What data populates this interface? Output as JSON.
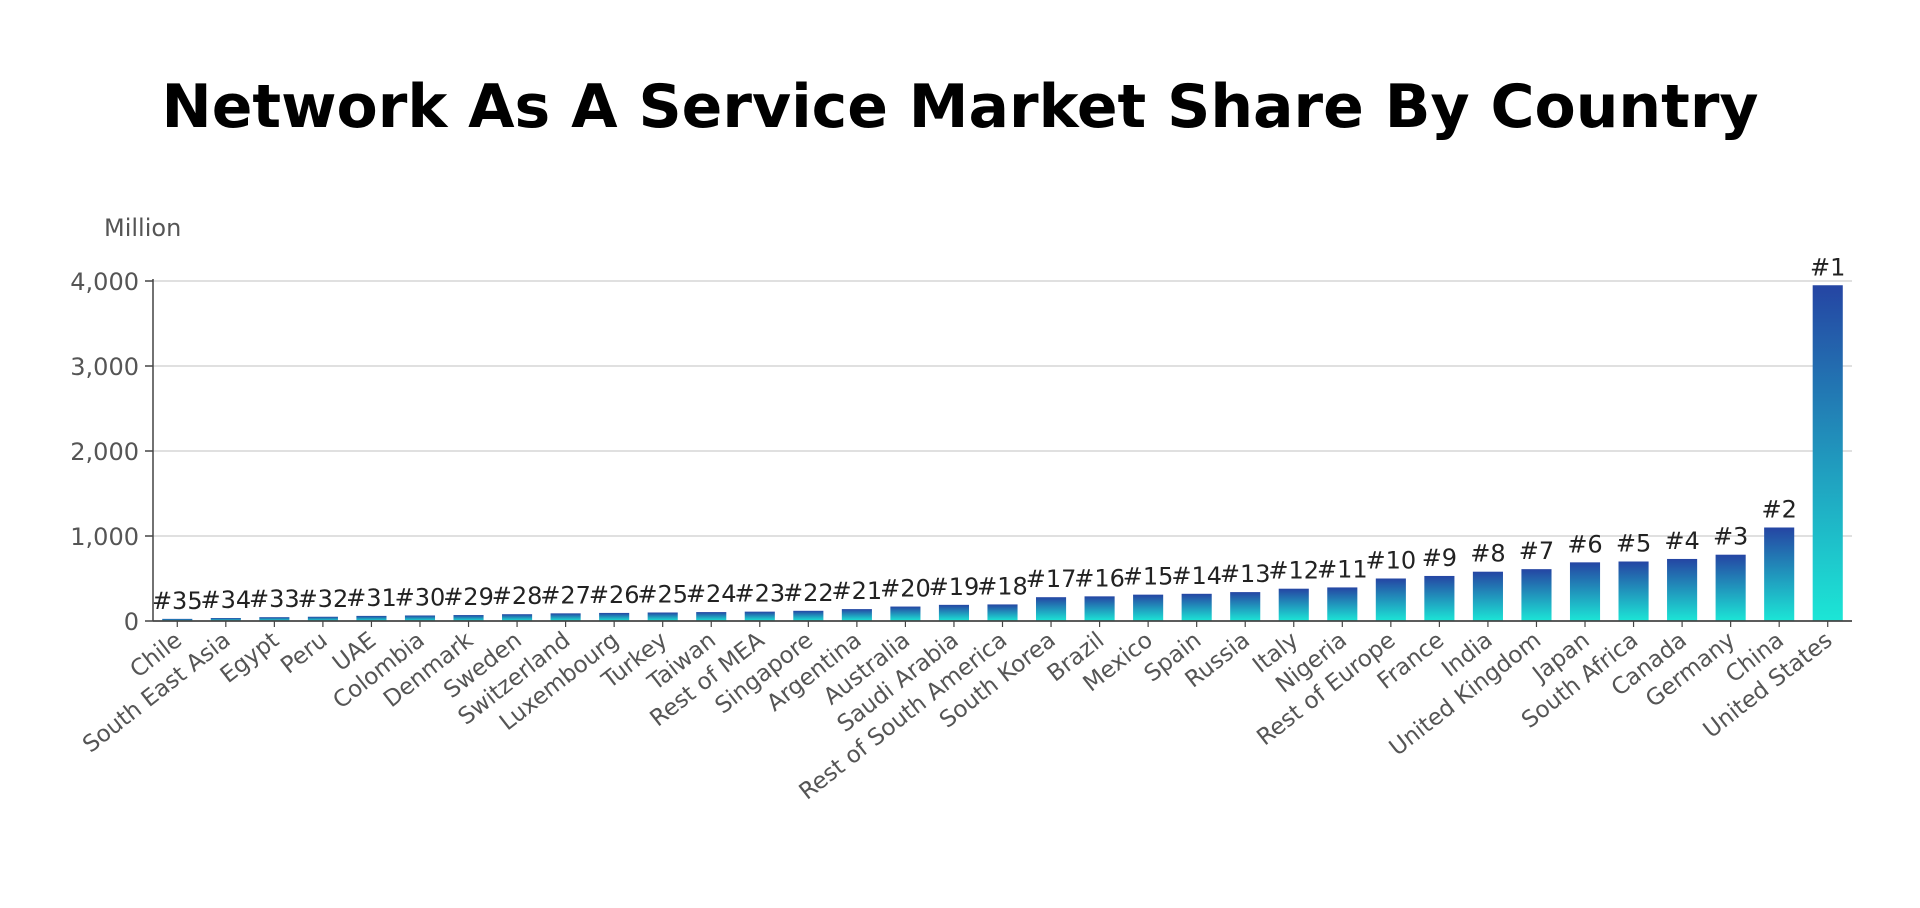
{
  "title": "Network As A Service Market Share By Country",
  "chart_data": {
    "type": "bar",
    "title": "Network As A Service Market Share By Country",
    "unit_label": "Million",
    "xlabel": "",
    "ylabel": "",
    "ylim": [
      0,
      4000
    ],
    "yticks": [
      0,
      1000,
      2000,
      3000,
      4000
    ],
    "ytick_labels": [
      "0",
      "1,000",
      "2,000",
      "3,000",
      "4,000"
    ],
    "grid": true,
    "legend": "none",
    "colors": {
      "bar_top": "#2545a3",
      "bar_bottom": "#1ce6d6",
      "grid": "#d6d6d6",
      "axis": "#444444",
      "text": "#555555"
    },
    "categories": [
      "Chile",
      "South East Asia",
      "Egypt",
      "Peru",
      "UAE",
      "Colombia",
      "Denmark",
      "Sweden",
      "Switzerland",
      "Luxembourg",
      "Turkey",
      "Taiwan",
      "Rest of MEA",
      "Singapore",
      "Argentina",
      "Australia",
      "Saudi Arabia",
      "Rest of South America",
      "South Korea",
      "Brazil",
      "Mexico",
      "Spain",
      "Russia",
      "Italy",
      "Nigeria",
      "Rest of Europe",
      "France",
      "India",
      "United Kingdom",
      "Japan",
      "South Africa",
      "Canada",
      "Germany",
      "China",
      "United States"
    ],
    "values": [
      25,
      35,
      45,
      50,
      60,
      65,
      70,
      80,
      90,
      95,
      100,
      105,
      110,
      120,
      140,
      170,
      190,
      195,
      280,
      290,
      310,
      320,
      340,
      380,
      395,
      500,
      530,
      580,
      610,
      690,
      700,
      730,
      780,
      1100,
      3950
    ],
    "rank_labels": [
      "#35",
      "#34",
      "#33",
      "#32",
      "#31",
      "#30",
      "#29",
      "#28",
      "#27",
      "#26",
      "#25",
      "#24",
      "#23",
      "#22",
      "#21",
      "#20",
      "#19",
      "#18",
      "#17",
      "#16",
      "#15",
      "#14",
      "#13",
      "#12",
      "#11",
      "#10",
      "#9",
      "#8",
      "#7",
      "#6",
      "#5",
      "#4",
      "#3",
      "#2",
      "#1"
    ]
  }
}
